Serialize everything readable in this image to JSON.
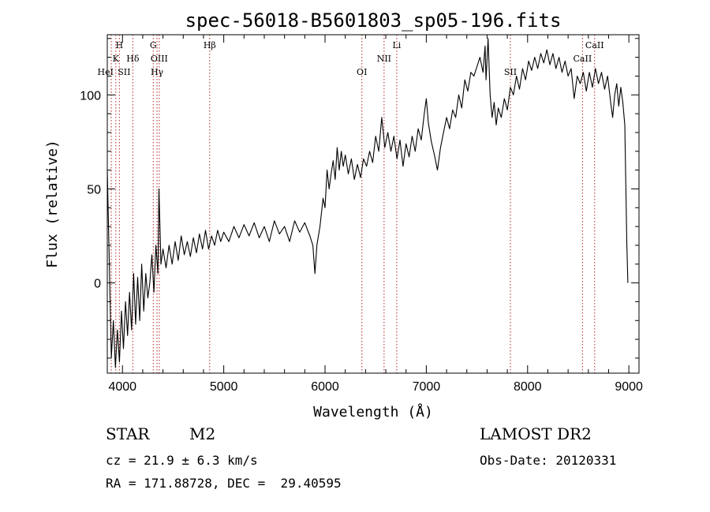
{
  "chart_data": {
    "type": "line",
    "title": "spec-56018-B5601803_sp05-196.fits",
    "xlabel": "Wavelength (Å)",
    "ylabel": "Flux (relative)",
    "xlim": [
      3850,
      9100
    ],
    "ylim": [
      -48,
      132
    ],
    "xticks": [
      4000,
      5000,
      6000,
      7000,
      8000,
      9000
    ],
    "yticks": [
      0,
      50,
      100
    ],
    "grid": false,
    "series": [
      {
        "line_color": "#000000",
        "points": [
          [
            3850,
            60
          ],
          [
            3870,
            10
          ],
          [
            3890,
            -40
          ],
          [
            3910,
            -20
          ],
          [
            3930,
            -45
          ],
          [
            3950,
            -25
          ],
          [
            3970,
            -42
          ],
          [
            3990,
            -15
          ],
          [
            4010,
            -35
          ],
          [
            4030,
            -10
          ],
          [
            4050,
            -28
          ],
          [
            4070,
            -5
          ],
          [
            4090,
            -25
          ],
          [
            4110,
            5
          ],
          [
            4130,
            -22
          ],
          [
            4150,
            3
          ],
          [
            4170,
            -20
          ],
          [
            4190,
            10
          ],
          [
            4210,
            -15
          ],
          [
            4230,
            5
          ],
          [
            4250,
            -8
          ],
          [
            4270,
            0
          ],
          [
            4290,
            15
          ],
          [
            4310,
            -5
          ],
          [
            4330,
            20
          ],
          [
            4350,
            5
          ],
          [
            4360,
            50
          ],
          [
            4380,
            10
          ],
          [
            4400,
            18
          ],
          [
            4430,
            8
          ],
          [
            4460,
            20
          ],
          [
            4490,
            10
          ],
          [
            4520,
            22
          ],
          [
            4550,
            12
          ],
          [
            4580,
            25
          ],
          [
            4610,
            15
          ],
          [
            4640,
            22
          ],
          [
            4670,
            14
          ],
          [
            4700,
            24
          ],
          [
            4730,
            16
          ],
          [
            4760,
            26
          ],
          [
            4790,
            18
          ],
          [
            4820,
            28
          ],
          [
            4850,
            18
          ],
          [
            4880,
            25
          ],
          [
            4910,
            20
          ],
          [
            4940,
            28
          ],
          [
            4970,
            22
          ],
          [
            5000,
            27
          ],
          [
            5050,
            22
          ],
          [
            5100,
            30
          ],
          [
            5150,
            24
          ],
          [
            5200,
            31
          ],
          [
            5250,
            25
          ],
          [
            5300,
            32
          ],
          [
            5350,
            24
          ],
          [
            5400,
            30
          ],
          [
            5450,
            22
          ],
          [
            5500,
            33
          ],
          [
            5550,
            26
          ],
          [
            5600,
            30
          ],
          [
            5650,
            22
          ],
          [
            5700,
            33
          ],
          [
            5750,
            27
          ],
          [
            5800,
            32
          ],
          [
            5850,
            25
          ],
          [
            5880,
            20
          ],
          [
            5900,
            5
          ],
          [
            5920,
            20
          ],
          [
            5950,
            30
          ],
          [
            5980,
            45
          ],
          [
            6000,
            40
          ],
          [
            6020,
            60
          ],
          [
            6040,
            50
          ],
          [
            6060,
            58
          ],
          [
            6080,
            65
          ],
          [
            6100,
            55
          ],
          [
            6120,
            72
          ],
          [
            6140,
            60
          ],
          [
            6160,
            70
          ],
          [
            6180,
            62
          ],
          [
            6200,
            68
          ],
          [
            6230,
            58
          ],
          [
            6260,
            66
          ],
          [
            6290,
            55
          ],
          [
            6320,
            63
          ],
          [
            6350,
            56
          ],
          [
            6380,
            66
          ],
          [
            6410,
            62
          ],
          [
            6440,
            70
          ],
          [
            6470,
            64
          ],
          [
            6500,
            78
          ],
          [
            6530,
            70
          ],
          [
            6560,
            88
          ],
          [
            6590,
            72
          ],
          [
            6620,
            80
          ],
          [
            6650,
            70
          ],
          [
            6680,
            78
          ],
          [
            6710,
            66
          ],
          [
            6740,
            76
          ],
          [
            6770,
            62
          ],
          [
            6800,
            74
          ],
          [
            6830,
            67
          ],
          [
            6860,
            78
          ],
          [
            6890,
            70
          ],
          [
            6920,
            82
          ],
          [
            6950,
            76
          ],
          [
            6980,
            90
          ],
          [
            7000,
            98
          ],
          [
            7020,
            85
          ],
          [
            7050,
            75
          ],
          [
            7080,
            68
          ],
          [
            7110,
            60
          ],
          [
            7140,
            72
          ],
          [
            7170,
            80
          ],
          [
            7200,
            88
          ],
          [
            7230,
            82
          ],
          [
            7260,
            92
          ],
          [
            7290,
            88
          ],
          [
            7320,
            100
          ],
          [
            7350,
            93
          ],
          [
            7380,
            108
          ],
          [
            7410,
            102
          ],
          [
            7440,
            112
          ],
          [
            7470,
            110
          ],
          [
            7500,
            115
          ],
          [
            7530,
            120
          ],
          [
            7560,
            112
          ],
          [
            7580,
            126
          ],
          [
            7590,
            108
          ],
          [
            7610,
            130
          ],
          [
            7630,
            100
          ],
          [
            7650,
            88
          ],
          [
            7670,
            96
          ],
          [
            7690,
            84
          ],
          [
            7710,
            93
          ],
          [
            7740,
            88
          ],
          [
            7770,
            98
          ],
          [
            7800,
            92
          ],
          [
            7830,
            104
          ],
          [
            7860,
            100
          ],
          [
            7890,
            110
          ],
          [
            7920,
            103
          ],
          [
            7950,
            114
          ],
          [
            7980,
            108
          ],
          [
            8010,
            118
          ],
          [
            8040,
            113
          ],
          [
            8070,
            120
          ],
          [
            8100,
            114
          ],
          [
            8130,
            122
          ],
          [
            8160,
            117
          ],
          [
            8190,
            124
          ],
          [
            8220,
            116
          ],
          [
            8250,
            122
          ],
          [
            8280,
            114
          ],
          [
            8310,
            120
          ],
          [
            8340,
            112
          ],
          [
            8370,
            118
          ],
          [
            8400,
            110
          ],
          [
            8430,
            114
          ],
          [
            8460,
            98
          ],
          [
            8490,
            110
          ],
          [
            8520,
            106
          ],
          [
            8550,
            112
          ],
          [
            8580,
            102
          ],
          [
            8610,
            112
          ],
          [
            8640,
            104
          ],
          [
            8670,
            114
          ],
          [
            8700,
            106
          ],
          [
            8730,
            112
          ],
          [
            8760,
            103
          ],
          [
            8790,
            110
          ],
          [
            8820,
            96
          ],
          [
            8840,
            88
          ],
          [
            8860,
            100
          ],
          [
            8880,
            106
          ],
          [
            8900,
            94
          ],
          [
            8920,
            104
          ],
          [
            8940,
            96
          ],
          [
            8960,
            84
          ],
          [
            8980,
            20
          ],
          [
            8990,
            0
          ]
        ]
      }
    ],
    "lines": [
      {
        "x": 3889,
        "labels": [
          "HeI"
        ]
      },
      {
        "x": 3934,
        "labels": [
          "K"
        ]
      },
      {
        "x": 3969,
        "labels": [
          "H",
          "SII"
        ]
      },
      {
        "x": 4102,
        "labels": [
          "Hδ"
        ]
      },
      {
        "x": 4304,
        "labels": [
          "G"
        ]
      },
      {
        "x": 4341,
        "labels": [
          "Hγ"
        ]
      },
      {
        "x": 4363,
        "labels": [
          "OIII"
        ]
      },
      {
        "x": 4861,
        "labels": [
          "Hβ"
        ]
      },
      {
        "x": 6364,
        "labels": [
          "OI"
        ]
      },
      {
        "x": 6583,
        "labels": [
          "NII"
        ]
      },
      {
        "x": 6708,
        "labels": [
          "Li"
        ]
      },
      {
        "x": 7830,
        "labels": [
          "SII"
        ]
      },
      {
        "x": 8542,
        "labels": [
          "CaII"
        ]
      },
      {
        "x": 8662,
        "labels": [
          "CaII"
        ]
      }
    ],
    "colors": {
      "axes": "#000000",
      "spectrum": "#000000",
      "line_markers": "#b22222"
    }
  },
  "info": {
    "class_label": "STAR",
    "subclass": "M2",
    "survey": "LAMOST DR2",
    "cz": "cz = 21.9 ± 6.3 km/s",
    "obs_date": "Obs-Date: 20120331",
    "coords": "RA = 171.88728, DEC =  29.40595"
  }
}
